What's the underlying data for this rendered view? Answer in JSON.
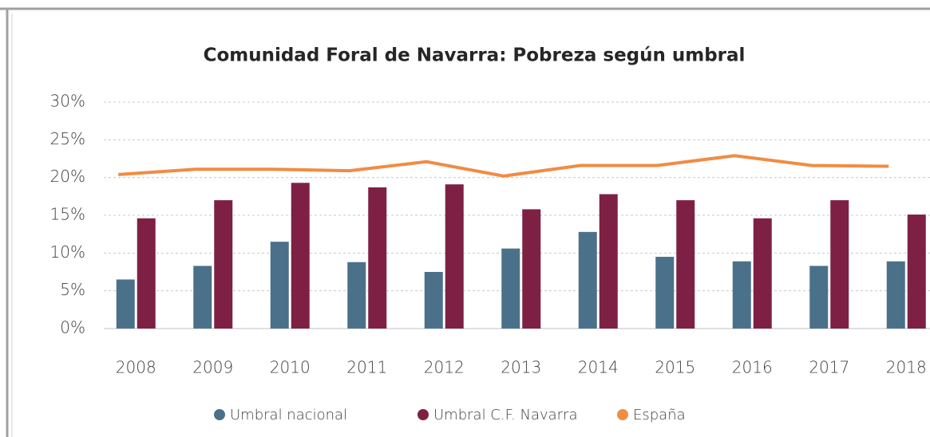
{
  "chart_data": {
    "type": "bar",
    "title": "Comunidad Foral de Navarra: Pobreza según umbral",
    "categories": [
      "2008",
      "2009",
      "2010",
      "2011",
      "2012",
      "2013",
      "2014",
      "2015",
      "2016",
      "2017",
      "2018"
    ],
    "series": [
      {
        "name": "Umbral nacional",
        "color": "#4a7189",
        "type": "bar",
        "values": [
          6.5,
          8.3,
          11.5,
          8.8,
          7.5,
          10.6,
          12.8,
          9.5,
          8.9,
          8.3,
          8.9
        ]
      },
      {
        "name": "Umbral C.F. Navarra",
        "color": "#7e2044",
        "type": "bar",
        "values": [
          14.6,
          17.0,
          19.3,
          18.7,
          19.1,
          15.8,
          17.8,
          17.0,
          14.6,
          17.0,
          15.1
        ]
      },
      {
        "name": "España",
        "color": "#f08c44",
        "type": "line",
        "values": [
          20.4,
          21.1,
          21.1,
          20.9,
          22.1,
          20.2,
          21.6,
          21.6,
          22.9,
          21.6,
          21.5
        ]
      }
    ],
    "ylim": [
      0,
      30
    ],
    "yticks": [
      {
        "value": 0,
        "label": "0%"
      },
      {
        "value": 5,
        "label": "5%"
      },
      {
        "value": 10,
        "label": "10%"
      },
      {
        "value": 15,
        "label": "15%"
      },
      {
        "value": 20,
        "label": "20%"
      },
      {
        "value": 25,
        "label": "25%"
      },
      {
        "value": 30,
        "label": "30%"
      }
    ],
    "grid": true,
    "legend": "bottom"
  }
}
